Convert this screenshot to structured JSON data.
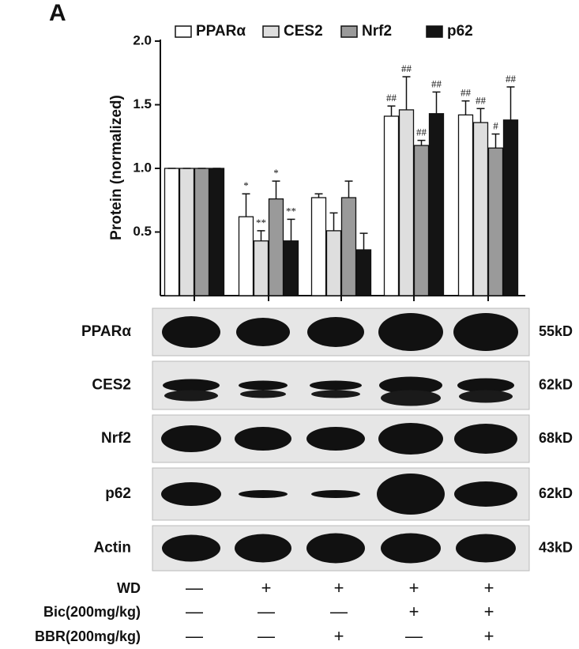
{
  "panel_label": "A",
  "chart_data": {
    "type": "bar",
    "y_label": "Protein (normalized)",
    "categories": [
      null,
      null,
      null,
      null,
      null
    ],
    "ylim": [
      0,
      2
    ],
    "yticks": [
      {
        "value": 2,
        "label": "2.0"
      },
      {
        "value": 1.5,
        "label": "1.5"
      },
      {
        "value": 1,
        "label": "1.0"
      },
      0.5
    ],
    "legend": "top",
    "series": [
      {
        "name": "PPARα",
        "color": "#ffffff",
        "values": [
          1.0,
          0.62,
          0.77,
          1.41,
          1.42
        ],
        "errors": [
          0,
          0.18,
          0.03,
          0.08,
          0.11
        ],
        "annotations": [
          null,
          "*",
          null,
          "##",
          "##"
        ]
      },
      {
        "name": "CES2",
        "color": "#dedede",
        "values": [
          1.0,
          0.43,
          0.51,
          1.46,
          1.36
        ],
        "errors": [
          0,
          0.08,
          0.14,
          0.26,
          0.11
        ],
        "annotations": [
          null,
          "**",
          null,
          "##",
          "##"
        ]
      },
      {
        "name": "Nrf2",
        "color": "#9a9a9a",
        "values": [
          1.0,
          0.76,
          0.77,
          1.18,
          1.16
        ],
        "errors": [
          0,
          0.14,
          0.13,
          0.04,
          0.11
        ],
        "annotations": [
          null,
          "*",
          null,
          "##",
          "#"
        ]
      },
      {
        "name": "p62",
        "color": "#141414",
        "values": [
          1.0,
          0.43,
          0.36,
          1.43,
          1.38
        ],
        "errors": [
          0,
          0.17,
          0.13,
          0.17,
          0.26
        ],
        "annotations": [
          null,
          "**",
          null,
          "##",
          "##"
        ]
      }
    ]
  },
  "blots": [
    {
      "label": "PPARα",
      "size": "55kD"
    },
    {
      "label": "CES2",
      "size": "62kD"
    },
    {
      "label": "Nrf2",
      "size": "68kD"
    },
    {
      "label": "p62",
      "size": "62kD"
    },
    {
      "label": "Actin",
      "size": "43kD"
    }
  ],
  "treatments": [
    {
      "label": "WD",
      "signs": [
        "—",
        "+",
        "+",
        "+",
        "+"
      ]
    },
    {
      "label": "Bic(200mg/kg)",
      "signs": [
        "—",
        "—",
        "—",
        "+",
        "+"
      ]
    },
    {
      "label": "BBR(200mg/kg)",
      "signs": [
        "—",
        "—",
        "+",
        "—",
        "+"
      ]
    }
  ]
}
